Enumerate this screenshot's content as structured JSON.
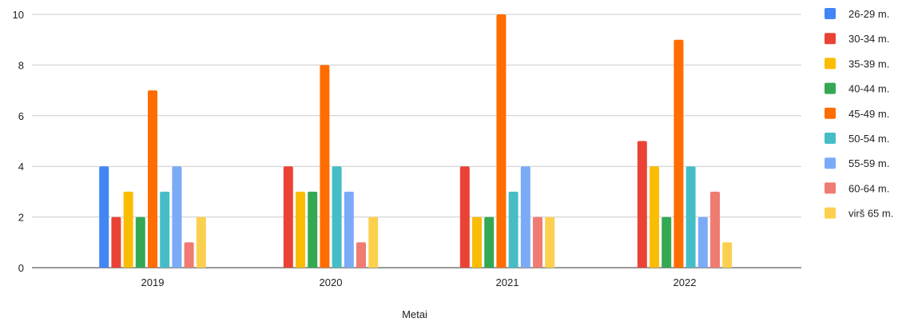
{
  "chart_data": {
    "type": "bar",
    "xlabel": "Metai",
    "ylabel": "",
    "ylim": [
      0,
      10
    ],
    "yticks": [
      0,
      2,
      4,
      6,
      8,
      10
    ],
    "grid": true,
    "legend_position": "right",
    "categories": [
      "2019",
      "2020",
      "2021",
      "2022"
    ],
    "series": [
      {
        "name": "26-29 m.",
        "color": "#4285F4",
        "values": [
          4,
          0,
          0,
          0
        ]
      },
      {
        "name": "30-34 m.",
        "color": "#EA4335",
        "values": [
          2,
          4,
          4,
          5
        ]
      },
      {
        "name": "35-39 m.",
        "color": "#FBBC04",
        "values": [
          3,
          3,
          2,
          4
        ]
      },
      {
        "name": "40-44 m.",
        "color": "#34A853",
        "values": [
          2,
          3,
          2,
          2
        ]
      },
      {
        "name": "45-49 m.",
        "color": "#FF6D01",
        "values": [
          7,
          8,
          10,
          9
        ]
      },
      {
        "name": "50-54 m.",
        "color": "#46BDC6",
        "values": [
          3,
          4,
          3,
          4
        ]
      },
      {
        "name": "55-59 m.",
        "color": "#7BAAF7",
        "values": [
          4,
          3,
          4,
          2
        ]
      },
      {
        "name": "60-64 m.",
        "color": "#F07B72",
        "values": [
          1,
          1,
          2,
          3
        ]
      },
      {
        "name": "virš 65 m.",
        "color": "#FCD04F",
        "values": [
          2,
          2,
          2,
          1
        ]
      }
    ]
  }
}
